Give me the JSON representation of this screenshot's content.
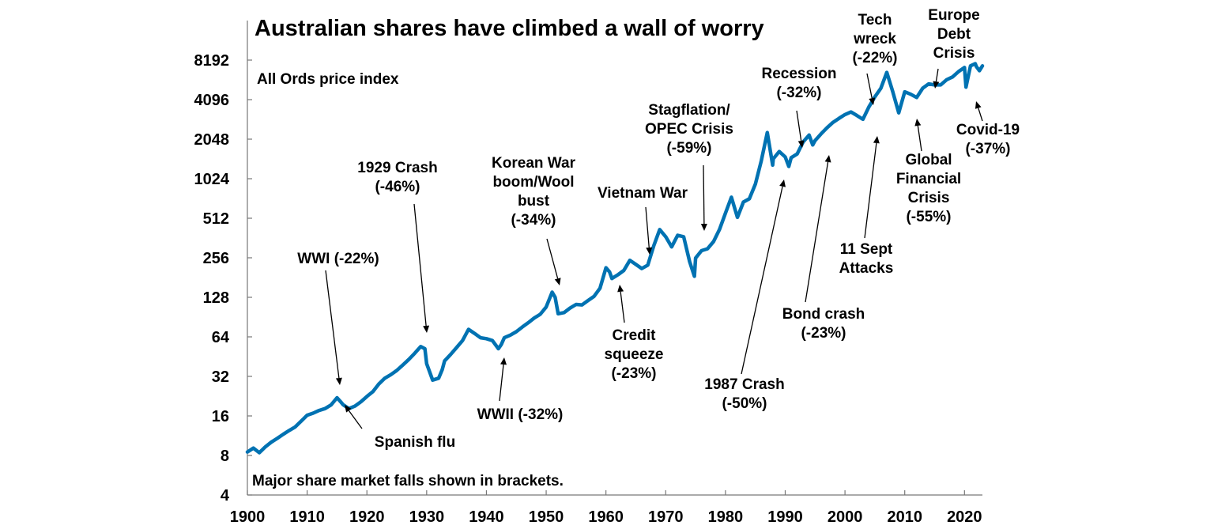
{
  "chart_data": {
    "type": "line",
    "title": "Australian shares have climbed a wall of worry",
    "subtitle": "All Ords price index",
    "footnote": "Major share market falls shown in brackets.",
    "xlabel": "",
    "ylabel": "",
    "yscale": "log2",
    "xlim": [
      1900,
      2023
    ],
    "ylim": [
      4,
      16384
    ],
    "x_ticks": [
      1900,
      1910,
      1920,
      1930,
      1940,
      1950,
      1960,
      1970,
      1980,
      1990,
      2000,
      2010,
      2020
    ],
    "y_ticks": [
      4,
      8,
      16,
      32,
      64,
      128,
      256,
      512,
      1024,
      2048,
      4096,
      8192
    ],
    "grid": false,
    "legend": "none",
    "series": [
      {
        "name": "All Ords price index",
        "color": "#0072b2",
        "points": [
          [
            1900,
            8.5
          ],
          [
            1901,
            9.1
          ],
          [
            1902,
            8.4
          ],
          [
            1903,
            9.3
          ],
          [
            1904,
            10.1
          ],
          [
            1905,
            10.8
          ],
          [
            1906,
            11.6
          ],
          [
            1907,
            12.4
          ],
          [
            1908,
            13.2
          ],
          [
            1909,
            14.6
          ],
          [
            1910,
            16.2
          ],
          [
            1911,
            16.8
          ],
          [
            1912,
            17.6
          ],
          [
            1913,
            18.2
          ],
          [
            1914,
            19.4
          ],
          [
            1915,
            22.0
          ],
          [
            1915.6,
            20.5
          ],
          [
            1916,
            19.5
          ],
          [
            1917,
            18.2
          ],
          [
            1918,
            19.0
          ],
          [
            1919,
            20.5
          ],
          [
            1920,
            22.5
          ],
          [
            1921,
            24.5
          ],
          [
            1922,
            28.0
          ],
          [
            1923,
            31.0
          ],
          [
            1924,
            33.0
          ],
          [
            1925,
            35.5
          ],
          [
            1926,
            39.0
          ],
          [
            1927,
            43.0
          ],
          [
            1928,
            48.0
          ],
          [
            1929,
            54.0
          ],
          [
            1929.7,
            52.0
          ],
          [
            1930,
            40.0
          ],
          [
            1931,
            30.0
          ],
          [
            1932,
            31.0
          ],
          [
            1932.6,
            36.0
          ],
          [
            1933,
            42.0
          ],
          [
            1934,
            47.0
          ],
          [
            1935,
            53.0
          ],
          [
            1936,
            60.0
          ],
          [
            1937,
            73.0
          ],
          [
            1938,
            68.0
          ],
          [
            1939,
            63.0
          ],
          [
            1940,
            62.0
          ],
          [
            1941,
            60.0
          ],
          [
            1942,
            52.0
          ],
          [
            1942.5,
            56.0
          ],
          [
            1943,
            63.0
          ],
          [
            1944,
            66.0
          ],
          [
            1945,
            70.0
          ],
          [
            1946,
            76.0
          ],
          [
            1947,
            82.0
          ],
          [
            1948,
            89.0
          ],
          [
            1949,
            95.0
          ],
          [
            1950,
            108.0
          ],
          [
            1951,
            140.0
          ],
          [
            1951.5,
            128.0
          ],
          [
            1952,
            96.0
          ],
          [
            1953,
            98.0
          ],
          [
            1954,
            106.0
          ],
          [
            1955,
            113.0
          ],
          [
            1956,
            112.0
          ],
          [
            1957,
            121.0
          ],
          [
            1958,
            130.0
          ],
          [
            1959,
            150.0
          ],
          [
            1960,
            215.0
          ],
          [
            1960.6,
            200.0
          ],
          [
            1961,
            178.0
          ],
          [
            1962,
            190.0
          ],
          [
            1963,
            205.0
          ],
          [
            1964,
            245.0
          ],
          [
            1965,
            228.0
          ],
          [
            1966,
            212.0
          ],
          [
            1967,
            225.0
          ],
          [
            1968,
            315.0
          ],
          [
            1969,
            420.0
          ],
          [
            1970,
            370.0
          ],
          [
            1971,
            310.0
          ],
          [
            1972,
            380.0
          ],
          [
            1973,
            370.0
          ],
          [
            1974,
            240.0
          ],
          [
            1974.8,
            185.0
          ],
          [
            1975,
            255.0
          ],
          [
            1976,
            290.0
          ],
          [
            1977,
            300.0
          ],
          [
            1978,
            340.0
          ],
          [
            1979,
            420.0
          ],
          [
            1980,
            560.0
          ],
          [
            1981,
            740.0
          ],
          [
            1982,
            520.0
          ],
          [
            1983,
            680.0
          ],
          [
            1984,
            720.0
          ],
          [
            1985,
            930.0
          ],
          [
            1986,
            1400.0
          ],
          [
            1987,
            2300.0
          ],
          [
            1987.9,
            1300.0
          ],
          [
            1988,
            1450.0
          ],
          [
            1989,
            1650.0
          ],
          [
            1990,
            1500.0
          ],
          [
            1990.6,
            1270.0
          ],
          [
            1991,
            1480.0
          ],
          [
            1992,
            1580.0
          ],
          [
            1993,
            1950.0
          ],
          [
            1994,
            2200.0
          ],
          [
            1994.6,
            1850.0
          ],
          [
            1995,
            2000.0
          ],
          [
            1996,
            2250.0
          ],
          [
            1997,
            2500.0
          ],
          [
            1998,
            2750.0
          ],
          [
            1999,
            2950.0
          ],
          [
            2000,
            3150.0
          ],
          [
            2001,
            3300.0
          ],
          [
            2002,
            3100.0
          ],
          [
            2003,
            2900.0
          ],
          [
            2004,
            3600.0
          ],
          [
            2005,
            4300.0
          ],
          [
            2006,
            5000.0
          ],
          [
            2007,
            6600.0
          ],
          [
            2008,
            4700.0
          ],
          [
            2009,
            3250.0
          ],
          [
            2010,
            4700.0
          ],
          [
            2011,
            4500.0
          ],
          [
            2012,
            4250.0
          ],
          [
            2013,
            5000.0
          ],
          [
            2014,
            5400.0
          ],
          [
            2015,
            5300.0
          ],
          [
            2016,
            5300.0
          ],
          [
            2017,
            5800.0
          ],
          [
            2018,
            6100.0
          ],
          [
            2019,
            6700.0
          ],
          [
            2020,
            7200.0
          ],
          [
            2020.25,
            5100.0
          ],
          [
            2021,
            7400.0
          ],
          [
            2021.8,
            7700.0
          ],
          [
            2022,
            7300.0
          ],
          [
            2022.5,
            6800.0
          ],
          [
            2023,
            7400.0
          ]
        ]
      }
    ],
    "annotations": [
      {
        "lines": [
          "WWI (-22%)"
        ],
        "x": 1915.3,
        "y": 21.5
      },
      {
        "lines": [
          "Spanish flu"
        ],
        "x": 1917.5,
        "y": 18.5
      },
      {
        "lines": [
          "1929 Crash",
          "(-46%)"
        ],
        "x": 1929.8,
        "y": 53
      },
      {
        "lines": [
          "WWII (-32%)"
        ],
        "x": 1942.3,
        "y": 53
      },
      {
        "lines": [
          "Korean War",
          "boom/Wool",
          "bust",
          "(-34%)"
        ],
        "x": 1951.2,
        "y": 140
      },
      {
        "lines": [
          "Credit",
          "squeeze",
          "(-23%)"
        ],
        "x": 1961,
        "y": 188
      },
      {
        "lines": [
          "Vietnam War"
        ],
        "x": 1965.9,
        "y": 213
      },
      {
        "lines": [
          "Stagflation/",
          "OPEC Crisis",
          "(-59%)"
        ],
        "x": 1974.8,
        "y": 400
      },
      {
        "lines": [
          "1987 Crash",
          "(-50%)"
        ],
        "x": 1987.7,
        "y": 1350
      },
      {
        "lines": [
          "Recession",
          "(-32%)"
        ],
        "x": 1990.6,
        "y": 1580
      },
      {
        "lines": [
          "Bond crash",
          "(-23%)"
        ],
        "x": 1994.6,
        "y": 1880
      },
      {
        "lines": [
          "Tech",
          "wreck",
          "(-22%)"
        ],
        "x": 2002.3,
        "y": 3250
      },
      {
        "lines": [
          "11 Sept",
          "Attacks"
        ],
        "x": 2001.8,
        "y": 2900
      },
      {
        "lines": [
          "Global",
          "Financial",
          "Crisis",
          "(-55%)"
        ],
        "x": 2009.1,
        "y": 3400
      },
      {
        "lines": [
          "Europe",
          "Debt",
          "Crisis"
        ],
        "x": 2011.7,
        "y": 4600
      },
      {
        "lines": [
          "Covid-19",
          "(-37%)"
        ],
        "x": 2020.4,
        "y": 5300
      }
    ]
  }
}
